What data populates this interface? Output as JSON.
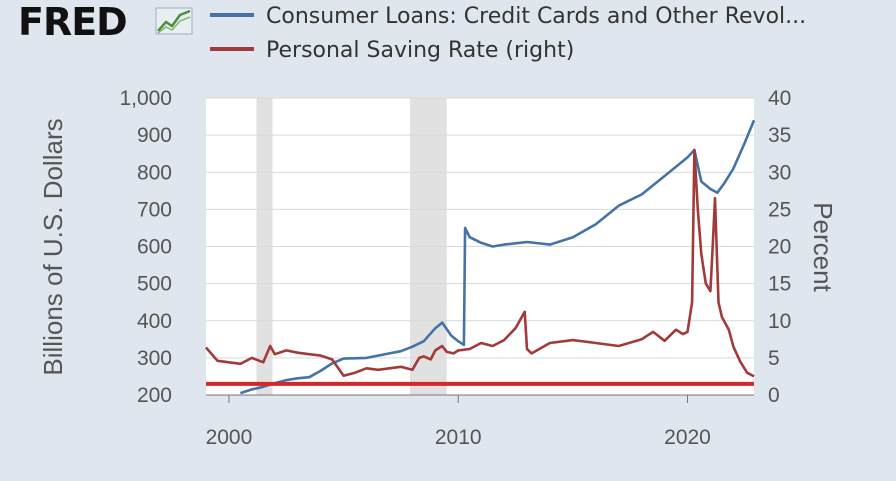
{
  "logo": {
    "text": "FRED",
    "icon": "fred-chart-icon"
  },
  "chart_data": {
    "type": "line",
    "title": "",
    "xlabel": "",
    "ylabel": "Billions of U.S. Dollars",
    "y2label": "Percent",
    "xlim": [
      1999.0,
      2022.9
    ],
    "ylim": [
      200,
      1000
    ],
    "y2lim": [
      0,
      40
    ],
    "x_ticks": [
      "2000",
      "2010",
      "2020"
    ],
    "y_ticks": [
      "200",
      "300",
      "400",
      "500",
      "600",
      "700",
      "800",
      "900",
      "1,000"
    ],
    "y2_ticks": [
      "0",
      "5",
      "10",
      "15",
      "20",
      "25",
      "30",
      "35",
      "40"
    ],
    "grid": "horizontal",
    "legend": "top",
    "recessions": [
      [
        2001.2,
        2001.9
      ],
      [
        2007.9,
        2009.5
      ]
    ],
    "reference_line": {
      "axis": "right",
      "value": 1.5,
      "color": "#d62728"
    },
    "series": [
      {
        "name": "Consumer Loans: Credit Cards and Other Revol...",
        "axis": "left",
        "color": "#4572a7",
        "x": [
          2000.5,
          2001.0,
          2001.5,
          2002.0,
          2002.5,
          2003.0,
          2003.5,
          2004.0,
          2004.5,
          2005.0,
          2006.0,
          2007.0,
          2007.5,
          2008.0,
          2008.5,
          2009.0,
          2009.3,
          2009.7,
          2010.0,
          2010.25,
          2010.3,
          2010.5,
          2011.0,
          2011.5,
          2012.0,
          2013.0,
          2014.0,
          2015.0,
          2016.0,
          2017.0,
          2018.0,
          2019.0,
          2020.0,
          2020.3,
          2020.6,
          2021.0,
          2021.3,
          2021.6,
          2022.0,
          2022.5,
          2022.9
        ],
        "values": [
          205,
          215,
          222,
          232,
          240,
          245,
          248,
          265,
          285,
          298,
          300,
          312,
          318,
          330,
          345,
          380,
          395,
          360,
          345,
          335,
          650,
          625,
          610,
          600,
          605,
          612,
          605,
          625,
          660,
          710,
          740,
          790,
          840,
          860,
          775,
          755,
          745,
          770,
          810,
          880,
          940
        ]
      },
      {
        "name": "Personal Saving Rate (right)",
        "axis": "right",
        "color": "#a33a3a",
        "x": [
          1999.0,
          1999.5,
          2000.0,
          2000.5,
          2001.0,
          2001.5,
          2001.8,
          2002.0,
          2002.5,
          2003.0,
          2003.5,
          2004.0,
          2004.5,
          2005.0,
          2005.5,
          2006.0,
          2006.5,
          2007.0,
          2007.5,
          2008.0,
          2008.3,
          2008.5,
          2008.8,
          2009.0,
          2009.3,
          2009.5,
          2009.8,
          2010.0,
          2010.5,
          2011.0,
          2011.5,
          2012.0,
          2012.5,
          2012.9,
          2013.0,
          2013.2,
          2014.0,
          2015.0,
          2016.0,
          2017.0,
          2018.0,
          2018.5,
          2019.0,
          2019.5,
          2019.8,
          2020.0,
          2020.2,
          2020.3,
          2020.45,
          2020.6,
          2020.8,
          2021.0,
          2021.1,
          2021.2,
          2021.35,
          2021.5,
          2021.8,
          2022.0,
          2022.3,
          2022.6,
          2022.9
        ],
        "values": [
          6.4,
          4.6,
          4.4,
          4.2,
          5.0,
          4.4,
          6.6,
          5.5,
          6.0,
          5.7,
          5.5,
          5.3,
          4.8,
          2.6,
          3.0,
          3.6,
          3.4,
          3.6,
          3.8,
          3.4,
          5.0,
          5.2,
          4.8,
          6.0,
          6.6,
          5.8,
          5.6,
          6.0,
          6.2,
          7.0,
          6.6,
          7.4,
          9.0,
          11.2,
          6.2,
          5.6,
          7.0,
          7.4,
          7.0,
          6.6,
          7.5,
          8.5,
          7.3,
          8.8,
          8.2,
          8.5,
          12.5,
          33.0,
          25.0,
          19.0,
          15.0,
          14.0,
          20.0,
          26.5,
          12.5,
          10.5,
          8.8,
          6.5,
          4.5,
          3.0,
          2.5
        ]
      }
    ]
  }
}
